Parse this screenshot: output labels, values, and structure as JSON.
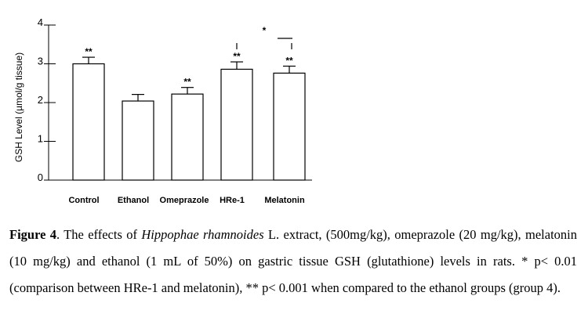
{
  "chart_data": {
    "type": "bar",
    "title": "",
    "xlabel": "",
    "ylabel": "GSH Level (µmol/g tissue)",
    "ylim": [
      0,
      4
    ],
    "yticks": [
      "0",
      "1",
      "2",
      "3",
      "4"
    ],
    "categories": [
      "Control",
      "Ethanol",
      "Omeprazole",
      "HRe-1",
      "Melatonin"
    ],
    "values": [
      3.0,
      2.04,
      2.22,
      2.86,
      2.76
    ],
    "errors": [
      0.17,
      0.17,
      0.17,
      0.19,
      0.18
    ],
    "significance": [
      "**",
      "",
      "**",
      "**",
      "**"
    ],
    "comparison_marker": "*",
    "grid": false,
    "bar_fill": "#ffffff",
    "bar_stroke": "#000000"
  },
  "caption": {
    "figure_label": "Figure 4",
    "text_1": ". The effects of ",
    "species": "Hippophae rhamnoides",
    "text_2": " L. extract, (500mg/kg), omeprazole (20 mg/kg), melatonin (10 mg/kg) and ethanol (1 mL of 50%) on gastric tissue GSH (glutathione) levels in rats. * p< 0.01 (comparison between HRe-1 and melatonin), ** p< 0.001 when compared to the ethanol groups (group 4)."
  }
}
